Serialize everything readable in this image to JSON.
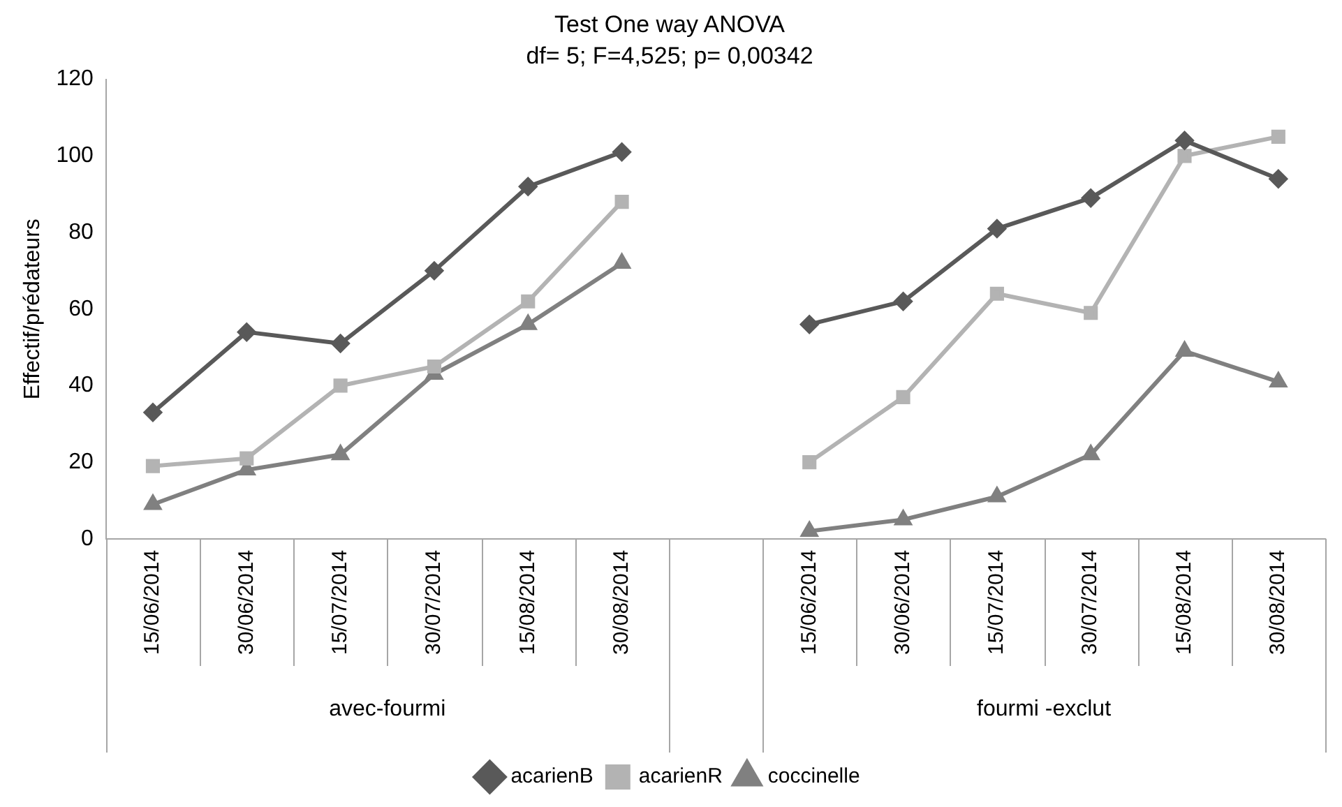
{
  "chart_data": {
    "type": "line",
    "title": "Test One way ANOVA",
    "subtitle": "df= 5; F=4,525; p= 0,00342",
    "ylabel": "Effectif/prédateurs",
    "categories": [
      "15/06/2014",
      "30/06/2014",
      "15/07/2014",
      "30/07/2014",
      "15/08/2014",
      "30/08/2014",
      null,
      "15/06/2014",
      "30/06/2014",
      "15/07/2014",
      "30/07/2014",
      "15/08/2014",
      "30/08/2014"
    ],
    "annotations": [
      "avec-fourmi",
      "fourmi -exclut"
    ],
    "series": [
      {
        "name": "acarienB",
        "color": "#595959",
        "marker": "diamond",
        "values": [
          33,
          54,
          51,
          70,
          92,
          101,
          null,
          56,
          62,
          81,
          89,
          104,
          94
        ]
      },
      {
        "name": "acarienR",
        "color": "#b3b3b3",
        "marker": "square",
        "values": [
          19,
          21,
          40,
          45,
          62,
          88,
          null,
          20,
          37,
          64,
          59,
          100,
          105
        ]
      },
      {
        "name": "coccinelle",
        "color": "#808080",
        "marker": "triangle",
        "values": [
          9,
          18,
          22,
          43,
          56,
          72,
          null,
          2,
          5,
          11,
          22,
          49,
          41
        ]
      }
    ],
    "ylim": [
      0,
      120
    ],
    "yticks": [
      0,
      20,
      40,
      60,
      80,
      100,
      120
    ],
    "grid": false,
    "legend": "bottom"
  }
}
